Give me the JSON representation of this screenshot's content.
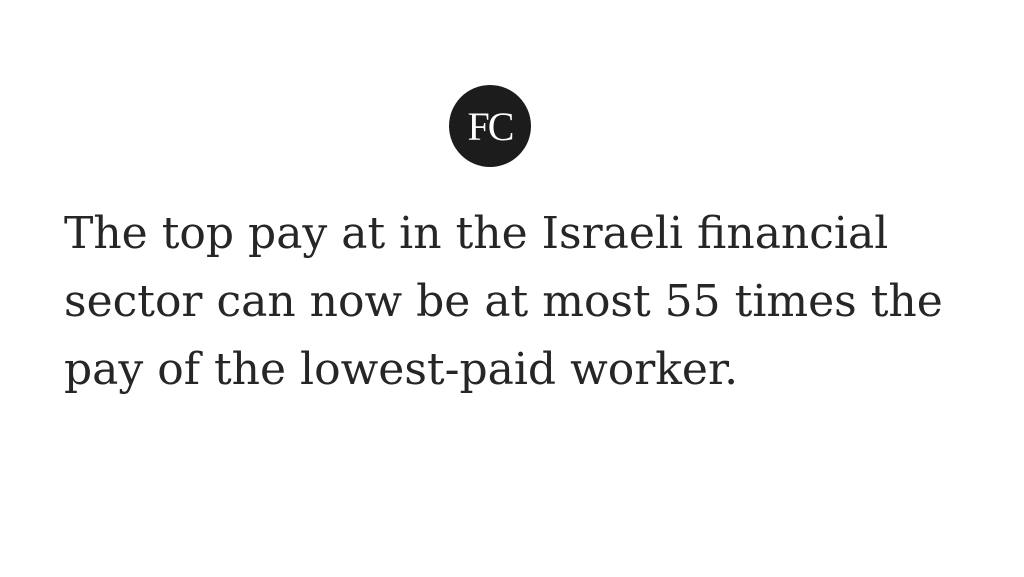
{
  "logo": {
    "text": "FC",
    "background_color": "#1c1c1c",
    "text_color": "#ffffff"
  },
  "quote": {
    "lines": [
      "The top pay at in the Israeli financial",
      "sector can now be at most 55 times the",
      "pay of the lowest-paid worker."
    ],
    "text_color": "#262626"
  }
}
